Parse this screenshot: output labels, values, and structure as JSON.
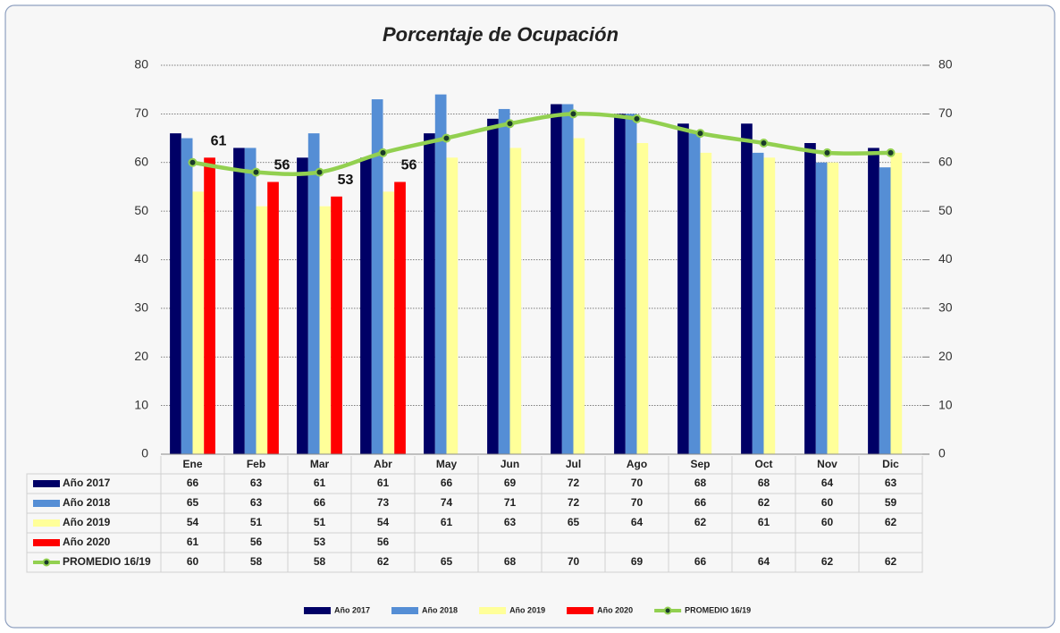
{
  "chart_data": {
    "type": "bar",
    "title": "Porcentaje de Ocupación",
    "categories": [
      "Ene",
      "Feb",
      "Mar",
      "Abr",
      "May",
      "Jun",
      "Jul",
      "Ago",
      "Sep",
      "Oct",
      "Nov",
      "Dic"
    ],
    "series": [
      {
        "name": "Año 2017",
        "type": "bar",
        "color": "#000066",
        "values": [
          66,
          63,
          61,
          61,
          66,
          69,
          72,
          70,
          68,
          68,
          64,
          63
        ]
      },
      {
        "name": "Año 2018",
        "type": "bar",
        "color": "#558ed5",
        "values": [
          65,
          63,
          66,
          73,
          74,
          71,
          72,
          70,
          66,
          62,
          60,
          59
        ]
      },
      {
        "name": "Año 2019",
        "type": "bar",
        "color": "#ffff99",
        "values": [
          54,
          51,
          51,
          54,
          61,
          63,
          65,
          64,
          62,
          61,
          60,
          62
        ]
      },
      {
        "name": "Año 2020",
        "type": "bar",
        "color": "#ff0000",
        "values": [
          61,
          56,
          53,
          56,
          null,
          null,
          null,
          null,
          null,
          null,
          null,
          null
        ],
        "data_labels": true
      },
      {
        "name": "PROMEDIO 16/19",
        "type": "line",
        "axis": "y2",
        "color": "#92d050",
        "values": [
          60,
          58,
          58,
          62,
          65,
          68,
          70,
          69,
          66,
          64,
          62,
          62
        ]
      }
    ],
    "ylim": [
      0,
      80
    ],
    "yticks": [
      0,
      10,
      20,
      30,
      40,
      50,
      60,
      70,
      80
    ],
    "y2lim": [
      0,
      80
    ],
    "y2ticks": [
      0,
      10,
      20,
      30,
      40,
      50,
      60,
      70,
      80
    ],
    "grid": true,
    "legend": "bottom",
    "data_table": true
  }
}
